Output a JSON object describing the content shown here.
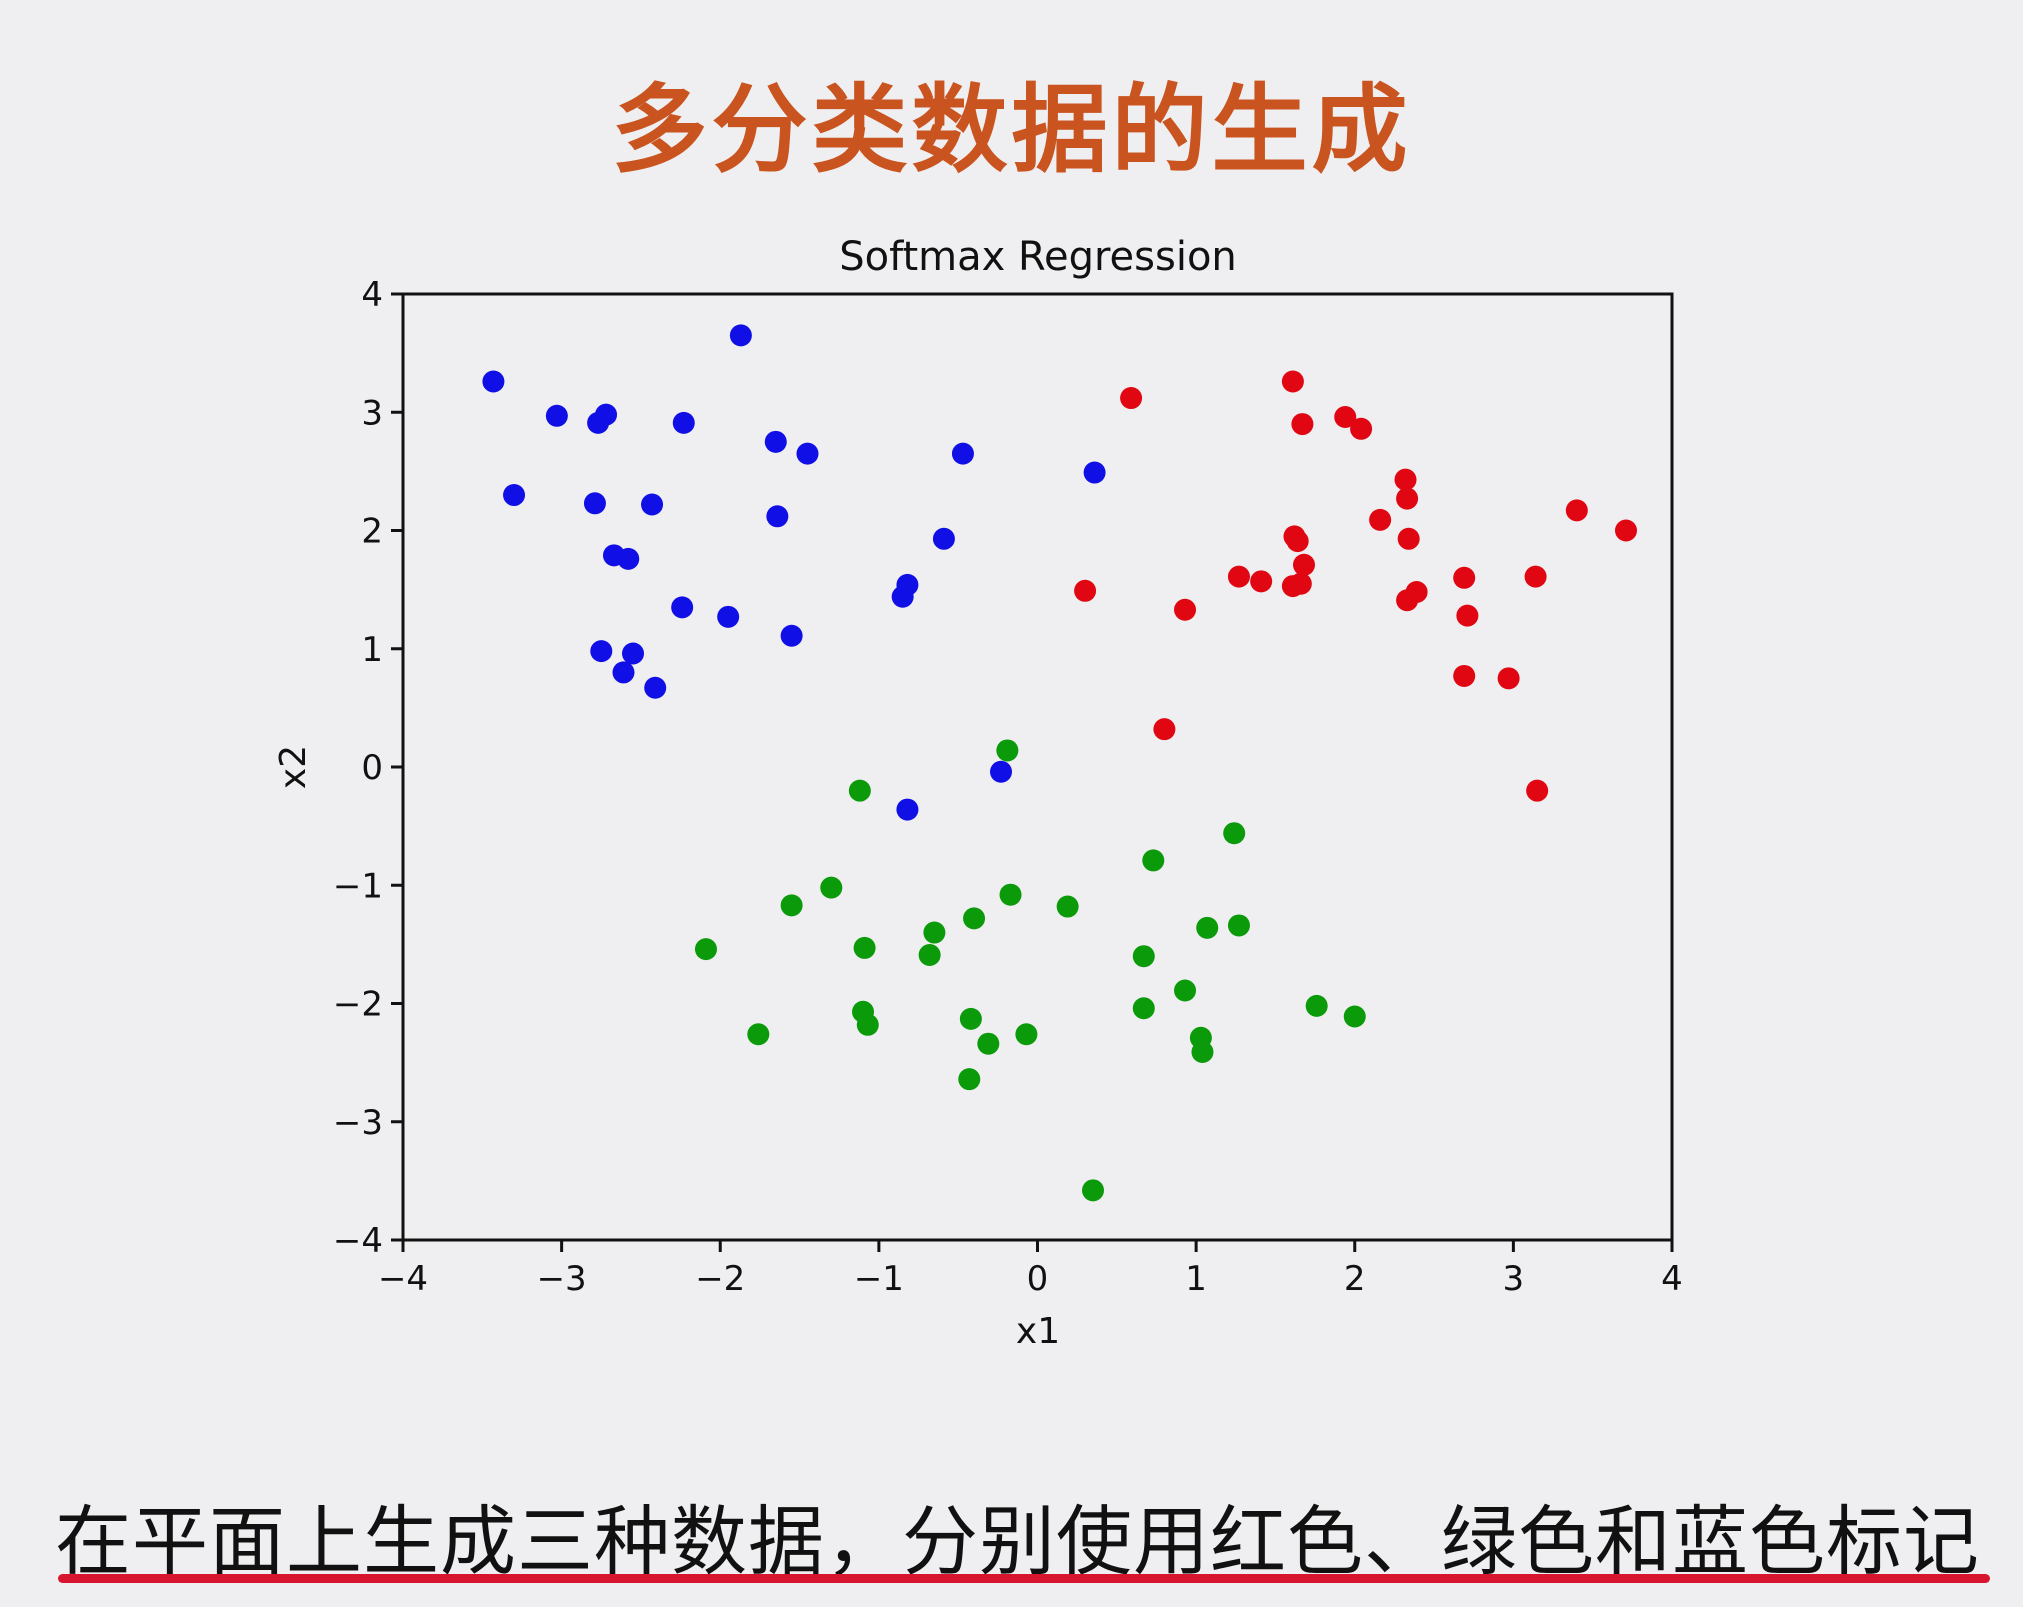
{
  "slide": {
    "title": "多分类数据的生成",
    "caption": "在平面上生成三种数据，分别使用红色、绿色和蓝色标记"
  },
  "colors": {
    "title": "#c9541f",
    "underline": "#d8152f",
    "red": "#e00612",
    "green": "#0a9a0a",
    "blue": "#1010e6"
  },
  "chart_data": {
    "type": "scatter",
    "title": "Softmax Regression",
    "xlabel": "x1",
    "ylabel": "x2",
    "xlim": [
      -4,
      4
    ],
    "ylim": [
      -4,
      4
    ],
    "xticks": [
      "−4",
      "−3",
      "−2",
      "−1",
      "0",
      "1",
      "2",
      "3",
      "4"
    ],
    "yticks": [
      "4",
      "3",
      "2",
      "1",
      "0",
      "−1",
      "−2",
      "−3",
      "−4"
    ],
    "grid": false,
    "legend": "none",
    "series": [
      {
        "color": "red",
        "points": [
          [
            0.59,
            3.12
          ],
          [
            1.61,
            3.26
          ],
          [
            1.67,
            2.9
          ],
          [
            1.94,
            2.96
          ],
          [
            2.04,
            2.86
          ],
          [
            2.32,
            2.43
          ],
          [
            2.33,
            2.27
          ],
          [
            2.16,
            2.09
          ],
          [
            2.34,
            1.93
          ],
          [
            1.62,
            1.95
          ],
          [
            1.64,
            1.91
          ],
          [
            1.68,
            1.71
          ],
          [
            1.27,
            1.61
          ],
          [
            1.41,
            1.57
          ],
          [
            1.61,
            1.53
          ],
          [
            1.66,
            1.55
          ],
          [
            0.3,
            1.49
          ],
          [
            0.93,
            1.33
          ],
          [
            2.33,
            1.41
          ],
          [
            2.39,
            1.48
          ],
          [
            2.69,
            1.6
          ],
          [
            2.71,
            1.28
          ],
          [
            3.14,
            1.61
          ],
          [
            3.4,
            2.17
          ],
          [
            3.71,
            2.0
          ],
          [
            2.69,
            0.77
          ],
          [
            2.97,
            0.75
          ],
          [
            0.8,
            0.32
          ],
          [
            3.15,
            -0.2
          ]
        ]
      },
      {
        "color": "green",
        "points": [
          [
            -0.19,
            0.14
          ],
          [
            -1.12,
            -0.2
          ],
          [
            1.24,
            -0.56
          ],
          [
            0.73,
            -0.79
          ],
          [
            -1.3,
            -1.02
          ],
          [
            -1.55,
            -1.17
          ],
          [
            -0.17,
            -1.08
          ],
          [
            0.19,
            -1.18
          ],
          [
            -0.4,
            -1.28
          ],
          [
            -0.65,
            -1.4
          ],
          [
            1.07,
            -1.36
          ],
          [
            1.27,
            -1.34
          ],
          [
            -2.09,
            -1.54
          ],
          [
            -1.09,
            -1.53
          ],
          [
            -0.68,
            -1.59
          ],
          [
            0.67,
            -1.6
          ],
          [
            0.93,
            -1.89
          ],
          [
            -1.1,
            -2.07
          ],
          [
            -1.07,
            -2.18
          ],
          [
            -0.42,
            -2.13
          ],
          [
            -1.76,
            -2.26
          ],
          [
            -0.07,
            -2.26
          ],
          [
            -0.31,
            -2.34
          ],
          [
            0.67,
            -2.04
          ],
          [
            1.76,
            -2.02
          ],
          [
            2.0,
            -2.11
          ],
          [
            1.03,
            -2.29
          ],
          [
            1.04,
            -2.41
          ],
          [
            -0.43,
            -2.64
          ],
          [
            0.35,
            -3.58
          ]
        ]
      },
      {
        "color": "blue",
        "points": [
          [
            -3.43,
            3.26
          ],
          [
            -1.87,
            3.65
          ],
          [
            -3.03,
            2.97
          ],
          [
            -2.77,
            2.91
          ],
          [
            -2.72,
            2.98
          ],
          [
            -2.23,
            2.91
          ],
          [
            -1.65,
            2.75
          ],
          [
            -1.45,
            2.65
          ],
          [
            -0.47,
            2.65
          ],
          [
            0.36,
            2.49
          ],
          [
            -3.3,
            2.3
          ],
          [
            -2.79,
            2.23
          ],
          [
            -2.43,
            2.22
          ],
          [
            -1.64,
            2.12
          ],
          [
            -0.59,
            1.93
          ],
          [
            -2.67,
            1.79
          ],
          [
            -2.58,
            1.76
          ],
          [
            -0.82,
            1.54
          ],
          [
            -0.85,
            1.44
          ],
          [
            -2.24,
            1.35
          ],
          [
            -1.95,
            1.27
          ],
          [
            -1.55,
            1.11
          ],
          [
            -2.75,
            0.98
          ],
          [
            -2.55,
            0.96
          ],
          [
            -2.61,
            0.8
          ],
          [
            -2.41,
            0.67
          ],
          [
            -0.23,
            -0.04
          ],
          [
            -0.82,
            -0.36
          ]
        ]
      }
    ]
  }
}
